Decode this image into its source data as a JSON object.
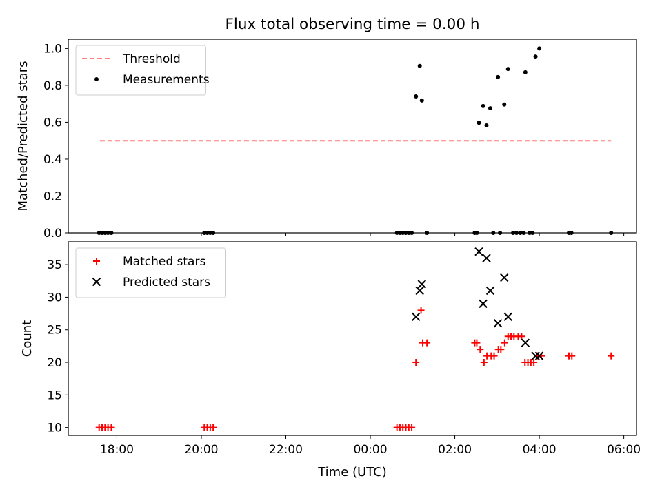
{
  "figure": {
    "title": "Flux total observing time = 0.00 h",
    "xlabel": "Time (UTC)"
  },
  "chart_data": [
    {
      "type": "scatter",
      "ylabel": "Matched/Predicted stars",
      "xlim": [
        -7.15,
        6.3
      ],
      "ylim": [
        0,
        1.05
      ],
      "xticks": [
        "18:00",
        "20:00",
        "22:00",
        "00:00",
        "02:00",
        "04:00",
        "06:00"
      ],
      "xtick_values": [
        -6,
        -4,
        -2,
        0,
        2,
        4,
        6
      ],
      "yticks": [
        "0.0",
        "0.2",
        "0.4",
        "0.6",
        "0.8",
        "1.0"
      ],
      "ytick_values": [
        0,
        0.2,
        0.4,
        0.6,
        0.8,
        1.0
      ],
      "legend_position": "upper-left",
      "grid": false,
      "series": [
        {
          "name": "Threshold",
          "kind": "dashed-line",
          "color": "#ff7f7f",
          "x": [
            -6.4,
            5.7
          ],
          "y": [
            0.5,
            0.5
          ]
        },
        {
          "name": "Measurements",
          "kind": "dot",
          "color": "#000000",
          "points": [
            [
              -6.42,
              0.0
            ],
            [
              -6.35,
              0.0
            ],
            [
              -6.28,
              0.0
            ],
            [
              -6.21,
              0.0
            ],
            [
              -6.13,
              0.0
            ],
            [
              -3.93,
              0.0
            ],
            [
              -3.86,
              0.0
            ],
            [
              -3.79,
              0.0
            ],
            [
              -3.72,
              0.0
            ],
            [
              0.63,
              0.0
            ],
            [
              0.7,
              0.0
            ],
            [
              0.77,
              0.0
            ],
            [
              0.84,
              0.0
            ],
            [
              0.91,
              0.0
            ],
            [
              0.98,
              0.0
            ],
            [
              1.08,
              0.74
            ],
            [
              1.17,
              0.905
            ],
            [
              1.22,
              0.718
            ],
            [
              1.34,
              0.0
            ],
            [
              2.47,
              0.0
            ],
            [
              2.52,
              0.0
            ],
            [
              2.57,
              0.597
            ],
            [
              2.67,
              0.688
            ],
            [
              2.75,
              0.583
            ],
            [
              2.84,
              0.676
            ],
            [
              2.91,
              0.0
            ],
            [
              3.02,
              0.845
            ],
            [
              3.07,
              0.0
            ],
            [
              3.17,
              0.696
            ],
            [
              3.26,
              0.889
            ],
            [
              3.38,
              0.0
            ],
            [
              3.46,
              0.0
            ],
            [
              3.55,
              0.0
            ],
            [
              3.63,
              0.0
            ],
            [
              3.67,
              0.871
            ],
            [
              3.77,
              0.0
            ],
            [
              3.84,
              0.0
            ],
            [
              3.91,
              0.956
            ],
            [
              4.0,
              1.0
            ],
            [
              4.7,
              0.0
            ],
            [
              4.76,
              0.0
            ],
            [
              5.7,
              0.0
            ]
          ]
        }
      ]
    },
    {
      "type": "scatter",
      "ylabel": "Count",
      "xlim": [
        -7.15,
        6.3
      ],
      "ylim": [
        8.8,
        38.5
      ],
      "xticks": [
        "18:00",
        "20:00",
        "22:00",
        "00:00",
        "02:00",
        "04:00",
        "06:00"
      ],
      "xtick_values": [
        -6,
        -4,
        -2,
        0,
        2,
        4,
        6
      ],
      "yticks": [
        "10",
        "15",
        "20",
        "25",
        "30",
        "35"
      ],
      "ytick_values": [
        10,
        15,
        20,
        25,
        30,
        35
      ],
      "legend_position": "upper-left",
      "grid": false,
      "series": [
        {
          "name": "Matched stars",
          "kind": "plus",
          "color": "#ff0000",
          "points": [
            [
              -6.42,
              10
            ],
            [
              -6.35,
              10
            ],
            [
              -6.28,
              10
            ],
            [
              -6.21,
              10
            ],
            [
              -6.13,
              10
            ],
            [
              -3.93,
              10
            ],
            [
              -3.86,
              10
            ],
            [
              -3.79,
              10
            ],
            [
              -3.72,
              10
            ],
            [
              0.63,
              10
            ],
            [
              0.7,
              10
            ],
            [
              0.77,
              10
            ],
            [
              0.84,
              10
            ],
            [
              0.91,
              10
            ],
            [
              0.98,
              10
            ],
            [
              1.08,
              20
            ],
            [
              1.2,
              28
            ],
            [
              1.24,
              23
            ],
            [
              1.34,
              23
            ],
            [
              2.47,
              23
            ],
            [
              2.52,
              23
            ],
            [
              2.6,
              22
            ],
            [
              2.69,
              20
            ],
            [
              2.76,
              21
            ],
            [
              2.86,
              21
            ],
            [
              2.93,
              21
            ],
            [
              3.03,
              22
            ],
            [
              3.09,
              22
            ],
            [
              3.18,
              23
            ],
            [
              3.26,
              24
            ],
            [
              3.33,
              24
            ],
            [
              3.4,
              24
            ],
            [
              3.5,
              24
            ],
            [
              3.58,
              24
            ],
            [
              3.66,
              20
            ],
            [
              3.73,
              20
            ],
            [
              3.8,
              20
            ],
            [
              3.87,
              20
            ],
            [
              3.95,
              21
            ],
            [
              4.05,
              21
            ],
            [
              4.7,
              21
            ],
            [
              4.77,
              21
            ],
            [
              5.7,
              21
            ]
          ]
        },
        {
          "name": "Predicted stars",
          "kind": "cross",
          "color": "#000000",
          "points": [
            [
              1.08,
              27
            ],
            [
              1.17,
              31
            ],
            [
              1.22,
              32
            ],
            [
              2.57,
              37
            ],
            [
              2.67,
              29
            ],
            [
              2.75,
              36
            ],
            [
              2.84,
              31
            ],
            [
              3.02,
              26
            ],
            [
              3.17,
              33
            ],
            [
              3.26,
              27
            ],
            [
              3.67,
              23
            ],
            [
              3.91,
              21
            ],
            [
              4.0,
              21
            ]
          ]
        }
      ]
    }
  ]
}
